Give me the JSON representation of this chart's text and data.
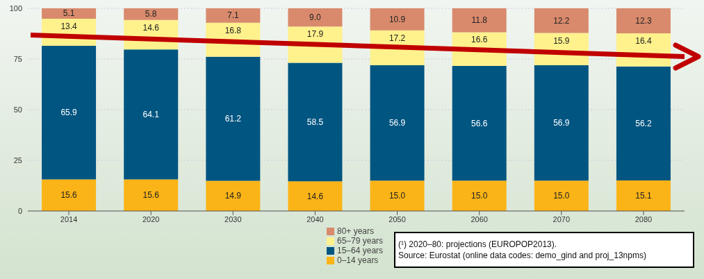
{
  "chart_data": {
    "type": "bar",
    "stacked": true,
    "categories": [
      "2014",
      "2020",
      "2030",
      "2040",
      "2050",
      "2060",
      "2070",
      "2080"
    ],
    "series": [
      {
        "name": "0–14 years",
        "color": "#fbb417",
        "values": [
          15.6,
          15.6,
          14.9,
          14.6,
          15.0,
          15.0,
          15.0,
          15.1
        ],
        "value_labels": [
          "15.6",
          "15.6",
          "14.9",
          "14.6",
          "15.0",
          "15.0",
          "15.0",
          "15.1"
        ]
      },
      {
        "name": "15–64 years",
        "color": "#005581",
        "values": [
          65.9,
          64.1,
          61.2,
          58.5,
          56.9,
          56.6,
          56.9,
          56.2
        ],
        "value_labels": [
          "65.9",
          "64.1",
          "61.2",
          "58.5",
          "56.9",
          "56.6",
          "56.9",
          "56.2"
        ]
      },
      {
        "name": "65–79 years",
        "color": "#fff18c",
        "values": [
          13.4,
          14.6,
          16.8,
          17.9,
          17.2,
          16.6,
          15.9,
          16.4
        ],
        "value_labels": [
          "13.4",
          "14.6",
          "16.8",
          "17.9",
          "17.2",
          "16.6",
          "15.9",
          "16.4"
        ]
      },
      {
        "name": "80+ years",
        "color": "#d98a6c",
        "values": [
          5.1,
          5.8,
          7.1,
          9.0,
          10.9,
          11.8,
          12.2,
          12.3
        ],
        "value_labels": [
          "5.1",
          "5.8",
          "7.1",
          "9.0",
          "10.9",
          "11.8",
          "12.2",
          "12.3"
        ]
      }
    ],
    "ylim": [
      0,
      100
    ],
    "yticks": [
      0,
      25,
      50,
      75,
      100
    ],
    "grid": "y",
    "legend": "bottom",
    "annotations": [
      "(¹) 2020–80: projections (EUROPOP2013).",
      "Source: Eurostat (online data codes: demo_gind and proj_13npms)"
    ]
  }
}
